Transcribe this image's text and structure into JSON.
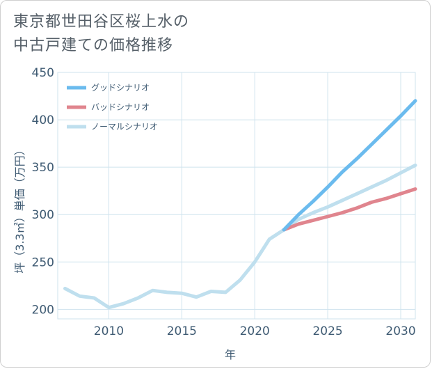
{
  "chart_data": {
    "type": "line",
    "title_lines": [
      "東京都世田谷区桜上水の",
      "中古戸建ての価格推移"
    ],
    "xlabel": "年",
    "ylabel": "坪（3.3㎡）単価（万円）",
    "xlim": [
      2006.5,
      2031
    ],
    "ylim": [
      190,
      450
    ],
    "xticks": [
      2010,
      2015,
      2020,
      2025,
      2030
    ],
    "yticks": [
      200,
      250,
      300,
      350,
      400,
      450
    ],
    "grid": true,
    "legend_position": "top-left",
    "series": [
      {
        "name": "グッドシナリオ",
        "color": "#6bbbee",
        "x": [
          2022,
          2023,
          2024,
          2025,
          2026,
          2027,
          2028,
          2029,
          2030,
          2031
        ],
        "values": [
          284,
          300,
          314,
          329,
          345,
          359,
          374,
          389,
          404,
          420
        ]
      },
      {
        "name": "バッドシナリオ",
        "color": "#e0858e",
        "x": [
          2022,
          2023,
          2024,
          2025,
          2026,
          2027,
          2028,
          2029,
          2030,
          2031
        ],
        "values": [
          284,
          290,
          294,
          298,
          302,
          307,
          313,
          317,
          322,
          327
        ]
      },
      {
        "name": "ノーマルシナリオ",
        "color": "#bfdfee",
        "x": [
          2007,
          2008,
          2009,
          2010,
          2011,
          2012,
          2013,
          2014,
          2015,
          2016,
          2017,
          2018,
          2019,
          2020,
          2021,
          2022,
          2023,
          2024,
          2025,
          2026,
          2027,
          2028,
          2029,
          2030,
          2031
        ],
        "values": [
          222,
          214,
          212,
          202,
          206,
          212,
          220,
          218,
          217,
          213,
          219,
          218,
          231,
          250,
          274,
          284,
          295,
          302,
          308,
          315,
          322,
          329,
          336,
          344,
          352
        ]
      }
    ]
  }
}
